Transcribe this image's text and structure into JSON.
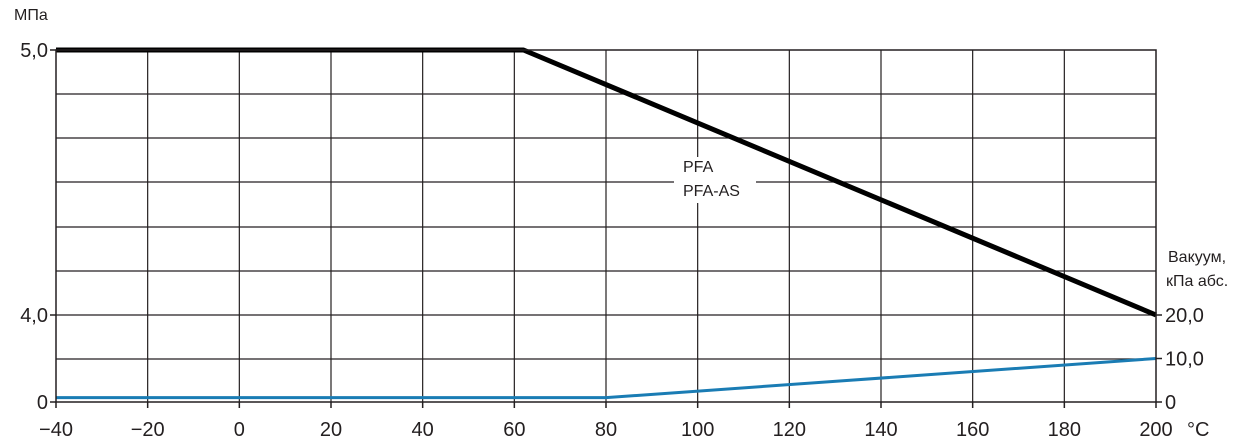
{
  "chart_data": {
    "type": "line",
    "title": "",
    "ylabel_left": "МПа",
    "ylabel_right": [
      "Вакуум,",
      "кПа абс."
    ],
    "xunit": "°C",
    "x_tick_labels": [
      "−40",
      "−20",
      "0",
      "20",
      "40",
      "60",
      "80",
      "100",
      "120",
      "140",
      "160",
      "180",
      "200"
    ],
    "x_tick_values": [
      -40,
      -20,
      0,
      20,
      40,
      60,
      80,
      100,
      120,
      140,
      160,
      180,
      200
    ],
    "xlim": [
      -40,
      200
    ],
    "y_left_ticks": [
      {
        "label": "5,0",
        "value": 5.0
      },
      {
        "label": "4,0",
        "value": 4.0
      },
      {
        "label": "0",
        "value": 0
      }
    ],
    "y_right_ticks": [
      {
        "label": "20,0",
        "value": 20.0
      },
      {
        "label": "10,0",
        "value": 10.0
      },
      {
        "label": "0",
        "value": 0
      }
    ],
    "grid": true,
    "series": [
      {
        "name": "PFA / PFA-AS",
        "axis": "left",
        "color": "#000000",
        "points": [
          [
            -40,
            5.0
          ],
          [
            62,
            5.0
          ],
          [
            200,
            4.0
          ]
        ]
      },
      {
        "axis": "right",
        "color": "#1a7cb4",
        "points": [
          [
            -40,
            1.0
          ],
          [
            80,
            1.0
          ],
          [
            200,
            10.0
          ]
        ]
      }
    ],
    "annotations": [
      {
        "text": "PFA"
      },
      {
        "text": "PFA-AS"
      }
    ]
  }
}
